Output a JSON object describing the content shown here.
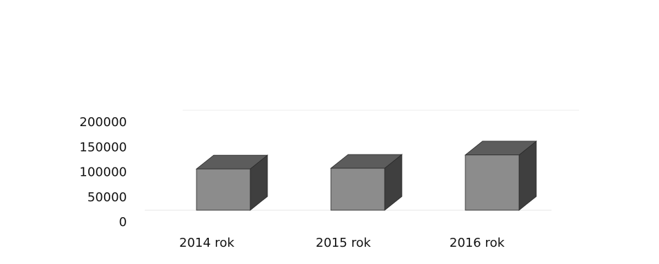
{
  "chart_data": {
    "type": "bar",
    "style": "3d",
    "categories": [
      "2014 rok",
      "2015 rok",
      "2016 rok"
    ],
    "values": [
      118000,
      120000,
      158000
    ],
    "ylim": [
      0,
      200000
    ],
    "yticks": [
      "0",
      "50000",
      "100000",
      "150000",
      "200000"
    ],
    "grid": false,
    "colors": {
      "front": "#8c8c8c",
      "top": "#5c5c5c",
      "side": "#3f3f3f"
    }
  }
}
